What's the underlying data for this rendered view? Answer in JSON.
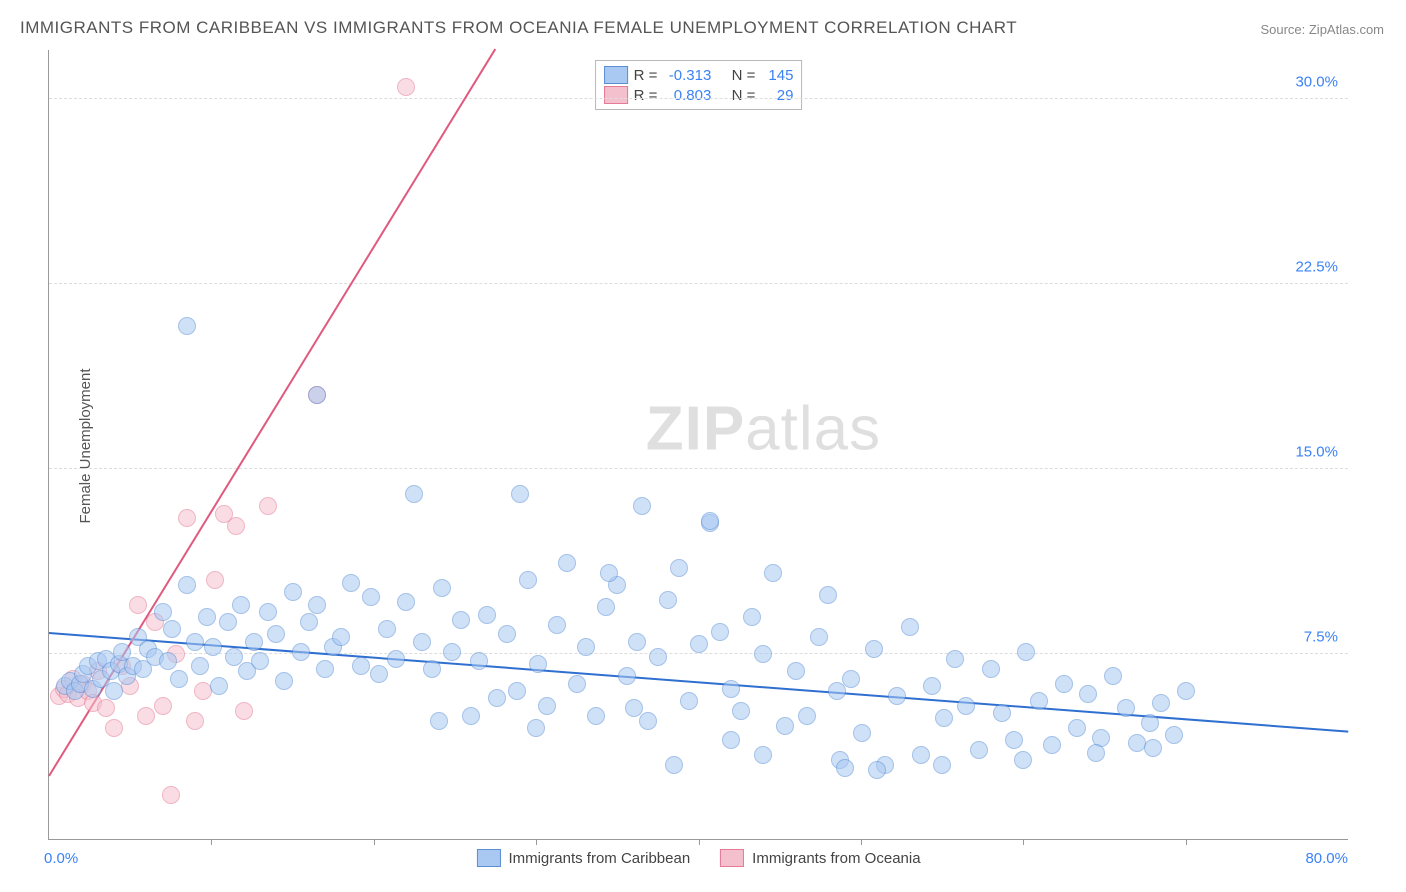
{
  "title": "IMMIGRANTS FROM CARIBBEAN VS IMMIGRANTS FROM OCEANIA FEMALE UNEMPLOYMENT CORRELATION CHART",
  "source": "Source: ZipAtlas.com",
  "ylabel": "Female Unemployment",
  "watermark_bold": "ZIP",
  "watermark_rest": "atlas",
  "chart": {
    "type": "scatter",
    "xlim": [
      0,
      80
    ],
    "ylim": [
      0,
      32
    ],
    "xticks_minor_step": 10,
    "xtick_min_label": "0.0%",
    "xtick_max_label": "80.0%",
    "xtick_color": "#3b82f6",
    "ytick_values": [
      7.5,
      15.0,
      22.5,
      30.0
    ],
    "ytick_labels": [
      "7.5%",
      "15.0%",
      "22.5%",
      "30.0%"
    ],
    "ytick_color": "#3b82f6",
    "grid_color": "#dddddd",
    "background_color": "#ffffff",
    "axis_color": "#999999",
    "marker_radius": 9,
    "marker_stroke_width": 1.5,
    "series": [
      {
        "name": "Immigrants from Caribbean",
        "fill": "#a9c9f2",
        "stroke": "#5a8fd6",
        "fill_opacity": 0.55,
        "R": "-0.313",
        "N": "145",
        "regression": {
          "x1": 0,
          "y1": 8.3,
          "x2": 80,
          "y2": 4.3,
          "color": "#2f6fd0",
          "width": 2
        },
        "points": [
          [
            1.0,
            6.2
          ],
          [
            1.3,
            6.4
          ],
          [
            1.6,
            6.0
          ],
          [
            1.9,
            6.3
          ],
          [
            2.1,
            6.7
          ],
          [
            2.4,
            7.0
          ],
          [
            2.7,
            6.1
          ],
          [
            3.0,
            7.2
          ],
          [
            3.2,
            6.5
          ],
          [
            3.5,
            7.3
          ],
          [
            3.8,
            6.8
          ],
          [
            4.0,
            6.0
          ],
          [
            4.3,
            7.1
          ],
          [
            4.5,
            7.6
          ],
          [
            4.8,
            6.6
          ],
          [
            5.2,
            7.0
          ],
          [
            5.5,
            8.2
          ],
          [
            5.8,
            6.9
          ],
          [
            6.1,
            7.7
          ],
          [
            6.5,
            7.4
          ],
          [
            7.0,
            9.2
          ],
          [
            7.3,
            7.2
          ],
          [
            7.6,
            8.5
          ],
          [
            8.0,
            6.5
          ],
          [
            8.5,
            10.3
          ],
          [
            9.0,
            8.0
          ],
          [
            9.3,
            7.0
          ],
          [
            9.7,
            9.0
          ],
          [
            10.1,
            7.8
          ],
          [
            10.5,
            6.2
          ],
          [
            11.0,
            8.8
          ],
          [
            11.4,
            7.4
          ],
          [
            11.8,
            9.5
          ],
          [
            12.2,
            6.8
          ],
          [
            12.6,
            8.0
          ],
          [
            13.0,
            7.2
          ],
          [
            13.5,
            9.2
          ],
          [
            14.0,
            8.3
          ],
          [
            14.5,
            6.4
          ],
          [
            15.0,
            10.0
          ],
          [
            15.5,
            7.6
          ],
          [
            16.0,
            8.8
          ],
          [
            16.5,
            9.5
          ],
          [
            17.0,
            6.9
          ],
          [
            17.5,
            7.8
          ],
          [
            18.0,
            8.2
          ],
          [
            18.6,
            10.4
          ],
          [
            19.2,
            7.0
          ],
          [
            19.8,
            9.8
          ],
          [
            20.3,
            6.7
          ],
          [
            20.8,
            8.5
          ],
          [
            21.4,
            7.3
          ],
          [
            22.0,
            9.6
          ],
          [
            22.5,
            14.0
          ],
          [
            23.0,
            8.0
          ],
          [
            23.6,
            6.9
          ],
          [
            24.2,
            10.2
          ],
          [
            24.8,
            7.6
          ],
          [
            25.4,
            8.9
          ],
          [
            26.0,
            5.0
          ],
          [
            26.5,
            7.2
          ],
          [
            27.0,
            9.1
          ],
          [
            27.6,
            5.7
          ],
          [
            28.2,
            8.3
          ],
          [
            28.8,
            6.0
          ],
          [
            29.5,
            10.5
          ],
          [
            30.1,
            7.1
          ],
          [
            30.7,
            5.4
          ],
          [
            31.3,
            8.7
          ],
          [
            31.9,
            11.2
          ],
          [
            32.5,
            6.3
          ],
          [
            33.1,
            7.8
          ],
          [
            33.7,
            5.0
          ],
          [
            34.3,
            9.4
          ],
          [
            35.0,
            10.3
          ],
          [
            35.6,
            6.6
          ],
          [
            36.2,
            8.0
          ],
          [
            36.9,
            4.8
          ],
          [
            37.5,
            7.4
          ],
          [
            38.1,
            9.7
          ],
          [
            38.8,
            11.0
          ],
          [
            39.4,
            5.6
          ],
          [
            40.0,
            7.9
          ],
          [
            40.7,
            12.8
          ],
          [
            41.3,
            8.4
          ],
          [
            42.0,
            6.1
          ],
          [
            42.6,
            5.2
          ],
          [
            43.3,
            9.0
          ],
          [
            44.0,
            7.5
          ],
          [
            44.6,
            10.8
          ],
          [
            45.3,
            4.6
          ],
          [
            46.0,
            6.8
          ],
          [
            46.7,
            5.0
          ],
          [
            47.4,
            8.2
          ],
          [
            48.0,
            9.9
          ],
          [
            48.7,
            3.2
          ],
          [
            49.4,
            6.5
          ],
          [
            50.1,
            4.3
          ],
          [
            50.8,
            7.7
          ],
          [
            51.5,
            3.0
          ],
          [
            52.2,
            5.8
          ],
          [
            53.0,
            8.6
          ],
          [
            53.7,
            3.4
          ],
          [
            54.4,
            6.2
          ],
          [
            55.1,
            4.9
          ],
          [
            55.8,
            7.3
          ],
          [
            56.5,
            5.4
          ],
          [
            57.3,
            3.6
          ],
          [
            58.0,
            6.9
          ],
          [
            58.7,
            5.1
          ],
          [
            59.4,
            4.0
          ],
          [
            60.2,
            7.6
          ],
          [
            61.0,
            5.6
          ],
          [
            61.8,
            3.8
          ],
          [
            62.5,
            6.3
          ],
          [
            63.3,
            4.5
          ],
          [
            64.0,
            5.9
          ],
          [
            64.8,
            4.1
          ],
          [
            65.5,
            6.6
          ],
          [
            66.3,
            5.3
          ],
          [
            67.0,
            3.9
          ],
          [
            67.8,
            4.7
          ],
          [
            68.5,
            5.5
          ],
          [
            69.3,
            4.2
          ],
          [
            70.0,
            6.0
          ],
          [
            24.0,
            4.8
          ],
          [
            30.0,
            4.5
          ],
          [
            36.0,
            5.3
          ],
          [
            42.0,
            4.0
          ],
          [
            48.5,
            6.0
          ],
          [
            8.5,
            20.8
          ],
          [
            16.5,
            18.0
          ],
          [
            29.0,
            14.0
          ],
          [
            36.5,
            13.5
          ],
          [
            34.5,
            10.8
          ],
          [
            40.7,
            12.9
          ],
          [
            51.0,
            2.8
          ],
          [
            55.0,
            3.0
          ],
          [
            60.0,
            3.2
          ],
          [
            64.5,
            3.5
          ],
          [
            68.0,
            3.7
          ],
          [
            38.5,
            3.0
          ],
          [
            44.0,
            3.4
          ],
          [
            49.0,
            2.9
          ]
        ]
      },
      {
        "name": "Immigrants from Oceania",
        "fill": "#f5c0ce",
        "stroke": "#e47a96",
        "fill_opacity": 0.55,
        "R": "0.803",
        "N": "29",
        "regression": {
          "x1": 0,
          "y1": 2.5,
          "x2": 27.5,
          "y2": 32,
          "color": "#e05a7f",
          "width": 2
        },
        "points": [
          [
            0.6,
            5.8
          ],
          [
            0.9,
            6.1
          ],
          [
            1.2,
            5.9
          ],
          [
            1.5,
            6.5
          ],
          [
            1.8,
            5.7
          ],
          [
            2.1,
            6.3
          ],
          [
            2.4,
            6.0
          ],
          [
            2.7,
            5.5
          ],
          [
            3.0,
            6.8
          ],
          [
            3.5,
            5.3
          ],
          [
            4.0,
            4.5
          ],
          [
            4.5,
            7.0
          ],
          [
            5.0,
            6.2
          ],
          [
            5.5,
            9.5
          ],
          [
            6.0,
            5.0
          ],
          [
            6.5,
            8.8
          ],
          [
            7.0,
            5.4
          ],
          [
            7.8,
            7.5
          ],
          [
            8.5,
            13.0
          ],
          [
            9.0,
            4.8
          ],
          [
            9.5,
            6.0
          ],
          [
            10.2,
            10.5
          ],
          [
            10.8,
            13.2
          ],
          [
            11.5,
            12.7
          ],
          [
            12.0,
            5.2
          ],
          [
            7.5,
            1.8
          ],
          [
            13.5,
            13.5
          ],
          [
            16.5,
            18.0
          ],
          [
            22.0,
            30.5
          ]
        ]
      }
    ],
    "stats_legend": {
      "R_label": "R =",
      "N_label": "N ="
    },
    "bottom_legend": [
      {
        "label": "Immigrants from Caribbean",
        "fill": "#a9c9f2",
        "stroke": "#5a8fd6"
      },
      {
        "label": "Immigrants from Oceania",
        "fill": "#f5c0ce",
        "stroke": "#e47a96"
      }
    ]
  }
}
